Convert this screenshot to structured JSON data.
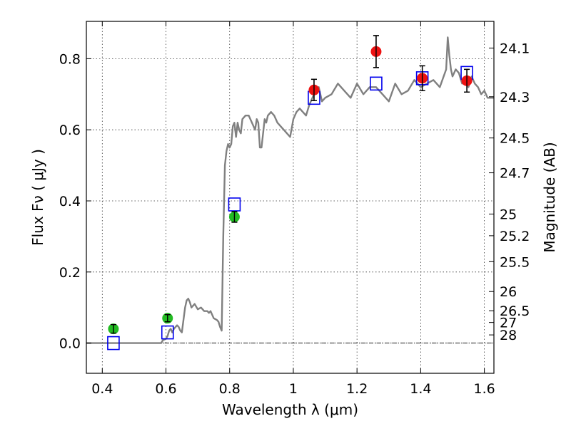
{
  "chart_data": {
    "type": "scatter",
    "xlabel": "Wavelength  λ (μm)",
    "ylabel": "Flux  Fν  ( μJy )",
    "ylabel_right": "Magnitude (AB)",
    "xlim": [
      0.35,
      1.63
    ],
    "ylim": [
      -0.085,
      0.905
    ],
    "x_ticks": [
      0.4,
      0.6,
      0.8,
      1.0,
      1.2,
      1.4,
      1.6
    ],
    "x_tick_labels": [
      "0.4",
      "0.6",
      "0.8",
      "1",
      "1.2",
      "1.4",
      "1.6"
    ],
    "y_ticks": [
      0.0,
      0.2,
      0.4,
      0.6,
      0.8
    ],
    "y_tick_labels": [
      "0.0",
      "0.2",
      "0.4",
      "0.6",
      "0.8"
    ],
    "grid": true,
    "right_ticks": [
      {
        "label": "24.1",
        "flux": 0.83
      },
      {
        "label": "24.3",
        "flux": 0.693
      },
      {
        "label": "24.5",
        "flux": 0.577
      },
      {
        "label": "24.7",
        "flux": 0.479
      },
      {
        "label": "25",
        "flux": 0.363
      },
      {
        "label": "25.2",
        "flux": 0.302
      },
      {
        "label": "25.5",
        "flux": 0.229
      },
      {
        "label": "26",
        "flux": 0.145
      },
      {
        "label": "26.5",
        "flux": 0.091
      },
      {
        "label": "27",
        "flux": 0.058
      },
      {
        "label": "28",
        "flux": 0.023
      }
    ],
    "series": [
      {
        "kind": "line",
        "color": "#808080",
        "x": [
          0.35,
          0.5,
          0.585,
          0.59,
          0.6,
          0.605,
          0.61,
          0.615,
          0.62,
          0.625,
          0.635,
          0.64,
          0.645,
          0.65,
          0.66,
          0.665,
          0.67,
          0.675,
          0.68,
          0.69,
          0.7,
          0.71,
          0.72,
          0.73,
          0.735,
          0.74,
          0.75,
          0.76,
          0.765,
          0.77,
          0.775,
          0.78,
          0.785,
          0.79,
          0.795,
          0.8,
          0.805,
          0.81,
          0.815,
          0.82,
          0.825,
          0.83,
          0.835,
          0.84,
          0.85,
          0.86,
          0.87,
          0.88,
          0.885,
          0.89,
          0.895,
          0.9,
          0.91,
          0.915,
          0.92,
          0.93,
          0.94,
          0.95,
          0.96,
          0.97,
          0.98,
          0.99,
          1.0,
          1.01,
          1.02,
          1.03,
          1.04,
          1.05,
          1.06,
          1.07,
          1.08,
          1.09,
          1.1,
          1.12,
          1.14,
          1.16,
          1.18,
          1.2,
          1.22,
          1.24,
          1.26,
          1.28,
          1.3,
          1.32,
          1.34,
          1.36,
          1.38,
          1.4,
          1.42,
          1.44,
          1.46,
          1.48,
          1.485,
          1.49,
          1.495,
          1.5,
          1.51,
          1.52,
          1.53,
          1.54,
          1.55,
          1.56,
          1.57,
          1.58,
          1.59,
          1.6,
          1.61,
          1.63
        ],
        "y": [
          0.0,
          0.0,
          0.0,
          0.008,
          0.012,
          0.02,
          0.035,
          0.04,
          0.03,
          0.04,
          0.05,
          0.045,
          0.035,
          0.03,
          0.1,
          0.12,
          0.125,
          0.115,
          0.1,
          0.11,
          0.095,
          0.1,
          0.09,
          0.09,
          0.085,
          0.09,
          0.07,
          0.065,
          0.06,
          0.045,
          0.035,
          0.3,
          0.5,
          0.54,
          0.56,
          0.55,
          0.56,
          0.61,
          0.62,
          0.58,
          0.62,
          0.6,
          0.59,
          0.63,
          0.64,
          0.64,
          0.62,
          0.6,
          0.63,
          0.62,
          0.55,
          0.55,
          0.63,
          0.62,
          0.64,
          0.65,
          0.64,
          0.62,
          0.61,
          0.6,
          0.59,
          0.58,
          0.63,
          0.65,
          0.66,
          0.65,
          0.64,
          0.67,
          0.69,
          0.71,
          0.72,
          0.68,
          0.69,
          0.7,
          0.73,
          0.71,
          0.69,
          0.73,
          0.7,
          0.72,
          0.72,
          0.7,
          0.68,
          0.73,
          0.7,
          0.71,
          0.74,
          0.72,
          0.73,
          0.74,
          0.72,
          0.77,
          0.86,
          0.81,
          0.77,
          0.75,
          0.77,
          0.76,
          0.73,
          0.74,
          0.72,
          0.75,
          0.73,
          0.72,
          0.7,
          0.71,
          0.69,
          0.69
        ]
      },
      {
        "kind": "points",
        "marker": "open-square",
        "color": "#0000ee",
        "x": [
          0.435,
          0.605,
          0.815,
          1.065,
          1.26,
          1.405,
          1.545
        ],
        "y": [
          0.0,
          0.03,
          0.39,
          0.69,
          0.73,
          0.745,
          0.76
        ]
      },
      {
        "kind": "points",
        "marker": "filled-circle",
        "color": "#22bb22",
        "x": [
          0.435,
          0.605,
          0.815
        ],
        "y": [
          0.04,
          0.07,
          0.355
        ],
        "yerr": [
          0.012,
          0.01,
          0.015
        ]
      },
      {
        "kind": "points",
        "marker": "filled-circle",
        "color": "#ee1111",
        "x": [
          1.065,
          1.26,
          1.405,
          1.545
        ],
        "y": [
          0.712,
          0.82,
          0.745,
          0.738
        ],
        "yerr": [
          0.03,
          0.045,
          0.035,
          0.032
        ]
      }
    ]
  }
}
